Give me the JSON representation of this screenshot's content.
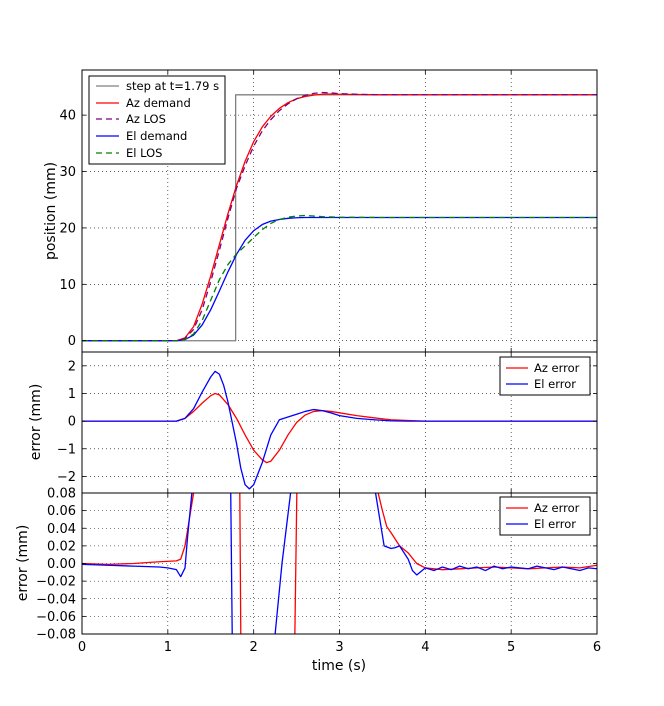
{
  "chart_data": [
    {
      "type": "line",
      "panel": "top",
      "xlim": [
        0,
        6
      ],
      "ylim": [
        -2,
        48
      ],
      "xticks": [
        0,
        1,
        2,
        3,
        4,
        5,
        6
      ],
      "yticks": [
        0,
        10,
        20,
        30,
        40
      ],
      "ytick_labels": [
        "0",
        "10",
        "20",
        "30",
        "40"
      ],
      "ylabel": "position (mm)",
      "grid": true,
      "legend_position": "top-left",
      "series": [
        {
          "name": "step at t=1.79 s",
          "color": "#808080",
          "style": "solid",
          "x": [
            0,
            1.79,
            1.79,
            6
          ],
          "y": [
            0,
            0,
            43.6,
            43.6
          ]
        },
        {
          "name": "Az demand",
          "color": "#ff0000",
          "style": "solid",
          "x": [
            0,
            1.1,
            1.2,
            1.3,
            1.4,
            1.5,
            1.6,
            1.7,
            1.8,
            1.9,
            2.0,
            2.1,
            2.2,
            2.3,
            2.4,
            2.5,
            2.6,
            2.7,
            2.8,
            2.9,
            3.0,
            3.2,
            3.5,
            4.0,
            6.0
          ],
          "y": [
            0,
            0,
            0.5,
            2.5,
            6.5,
            11.5,
            17.0,
            22.5,
            27.5,
            31.8,
            35.3,
            37.9,
            39.8,
            41.2,
            42.2,
            42.9,
            43.3,
            43.55,
            43.7,
            43.75,
            43.7,
            43.65,
            43.6,
            43.6,
            43.6
          ]
        },
        {
          "name": "Az LOS",
          "color": "#800080",
          "style": "dashed",
          "x": [
            0,
            1.1,
            1.2,
            1.3,
            1.4,
            1.5,
            1.6,
            1.7,
            1.8,
            1.9,
            2.0,
            2.1,
            2.2,
            2.3,
            2.4,
            2.5,
            2.6,
            2.7,
            2.8,
            2.9,
            3.0,
            3.2,
            3.5,
            4.0,
            6.0
          ],
          "y": [
            0,
            0,
            0.4,
            2.0,
            5.5,
            10.5,
            16.0,
            21.7,
            27.0,
            31.0,
            34.5,
            37.2,
            39.2,
            40.8,
            42.0,
            42.9,
            43.5,
            43.85,
            44.0,
            43.95,
            43.8,
            43.7,
            43.6,
            43.6,
            43.6
          ]
        },
        {
          "name": "El demand",
          "color": "#0000ff",
          "style": "solid",
          "x": [
            0,
            1.1,
            1.2,
            1.3,
            1.4,
            1.5,
            1.6,
            1.7,
            1.8,
            1.9,
            2.0,
            2.1,
            2.2,
            2.3,
            2.4,
            2.5,
            2.6,
            2.7,
            2.8,
            3.0,
            3.5,
            4.0,
            6.0
          ],
          "y": [
            0,
            0,
            0.2,
            1.0,
            2.8,
            5.5,
            8.8,
            12.2,
            15.3,
            17.8,
            19.5,
            20.6,
            21.2,
            21.5,
            21.7,
            21.8,
            21.85,
            21.85,
            21.85,
            21.85,
            21.85,
            21.85,
            21.85
          ]
        },
        {
          "name": "El LOS",
          "color": "#008000",
          "style": "dashed",
          "x": [
            0,
            1.1,
            1.2,
            1.3,
            1.4,
            1.5,
            1.6,
            1.7,
            1.8,
            1.9,
            2.0,
            2.1,
            2.2,
            2.3,
            2.4,
            2.5,
            2.6,
            2.7,
            2.8,
            3.0,
            3.5,
            4.0,
            6.0
          ],
          "y": [
            0,
            0,
            0.2,
            1.2,
            3.6,
            7.2,
            10.8,
            13.5,
            15.4,
            16.8,
            18.3,
            19.7,
            20.8,
            21.5,
            21.9,
            22.1,
            22.2,
            22.1,
            22.0,
            21.9,
            21.85,
            21.85,
            21.85
          ]
        }
      ]
    },
    {
      "type": "line",
      "panel": "middle",
      "xlim": [
        0,
        6
      ],
      "ylim": [
        -2.6,
        2.5
      ],
      "xticks": [
        0,
        1,
        2,
        3,
        4,
        5,
        6
      ],
      "yticks": [
        2,
        1,
        0,
        -1,
        -2
      ],
      "ytick_labels": [
        "2",
        "1",
        "0",
        "−1",
        "−2"
      ],
      "ylabel": "error (mm)",
      "grid": true,
      "legend_position": "top-right",
      "series": [
        {
          "name": "Az error",
          "color": "#ff0000",
          "x": [
            0,
            1.1,
            1.2,
            1.3,
            1.4,
            1.5,
            1.55,
            1.6,
            1.7,
            1.8,
            1.9,
            2.0,
            2.1,
            2.15,
            2.2,
            2.3,
            2.4,
            2.5,
            2.6,
            2.7,
            2.8,
            2.9,
            3.0,
            3.2,
            3.4,
            3.6,
            3.8,
            4.0,
            4.5,
            6.0
          ],
          "y": [
            0,
            0,
            0.1,
            0.35,
            0.65,
            0.92,
            1.0,
            0.95,
            0.6,
            0.1,
            -0.5,
            -1.05,
            -1.4,
            -1.5,
            -1.45,
            -1.05,
            -0.5,
            -0.05,
            0.22,
            0.35,
            0.38,
            0.35,
            0.3,
            0.2,
            0.12,
            0.05,
            0.02,
            0.0,
            0.0,
            0.0
          ]
        },
        {
          "name": "El error",
          "color": "#0000ff",
          "x": [
            0,
            1.1,
            1.2,
            1.3,
            1.4,
            1.5,
            1.55,
            1.6,
            1.65,
            1.7,
            1.8,
            1.85,
            1.9,
            1.95,
            2.0,
            2.1,
            2.2,
            2.3,
            2.4,
            2.5,
            2.6,
            2.7,
            2.8,
            2.9,
            3.0,
            3.2,
            3.4,
            3.6,
            3.8,
            4.0,
            4.5,
            6.0
          ],
          "y": [
            0,
            0,
            0.1,
            0.45,
            1.05,
            1.6,
            1.8,
            1.7,
            1.3,
            0.7,
            -0.8,
            -1.7,
            -2.3,
            -2.45,
            -2.3,
            -1.5,
            -0.5,
            0.05,
            0.15,
            0.25,
            0.35,
            0.42,
            0.38,
            0.3,
            0.2,
            0.1,
            0.05,
            0.01,
            0.0,
            0.0,
            0.0,
            0.0
          ]
        }
      ]
    },
    {
      "type": "line",
      "panel": "bottom",
      "xlim": [
        0,
        6
      ],
      "ylim": [
        -0.08,
        0.08
      ],
      "xticks": [
        0,
        1,
        2,
        3,
        4,
        5,
        6
      ],
      "xtick_labels": [
        "0",
        "1",
        "2",
        "3",
        "4",
        "5",
        "6"
      ],
      "xlabel": "time (s)",
      "yticks": [
        0.08,
        0.06,
        0.04,
        0.02,
        0.0,
        -0.02,
        -0.04,
        -0.06,
        -0.08
      ],
      "ytick_labels": [
        "0.08",
        "0.06",
        "0.04",
        "0.02",
        "0.00",
        "−0.02",
        "−0.04",
        "−0.06",
        "−0.08"
      ],
      "ylabel": "error (mm)",
      "grid": true,
      "legend_position": "top-right",
      "series": [
        {
          "name": "Az error",
          "color": "#ff0000",
          "x": [
            0,
            0.3,
            0.6,
            0.9,
            1.1,
            1.15,
            1.2,
            1.25,
            1.3,
            1.35,
            1.83,
            1.85,
            1.87,
            2.45,
            2.48,
            2.52,
            3.38,
            3.45,
            3.5,
            3.55,
            3.6,
            3.7,
            3.8,
            3.9,
            4.0,
            4.2,
            4.4,
            4.6,
            4.8,
            5.0,
            5.2,
            5.4,
            5.6,
            5.8,
            6.0
          ],
          "y": [
            0.0,
            -0.001,
            0.0,
            0.002,
            0.003,
            0.005,
            0.02,
            0.05,
            0.08,
            0.2,
            0.2,
            -0.08,
            -0.2,
            -0.2,
            -0.08,
            0.2,
            0.2,
            0.08,
            0.06,
            0.042,
            0.035,
            0.02,
            0.012,
            0.0,
            -0.005,
            -0.007,
            -0.006,
            -0.005,
            -0.004,
            -0.005,
            -0.006,
            -0.005,
            -0.004,
            -0.005,
            -0.002
          ]
        },
        {
          "name": "El error",
          "color": "#0000ff",
          "x": [
            0,
            0.3,
            0.6,
            0.9,
            1.0,
            1.1,
            1.15,
            1.2,
            1.23,
            1.28,
            1.35,
            1.72,
            1.75,
            1.78,
            2.2,
            2.25,
            2.33,
            2.43,
            2.6,
            3.38,
            3.42,
            3.47,
            3.52,
            3.6,
            3.65,
            3.7,
            3.8,
            3.85,
            3.9,
            4.0,
            4.1,
            4.2,
            4.3,
            4.4,
            4.5,
            4.6,
            4.7,
            4.8,
            4.9,
            5.0,
            5.1,
            5.2,
            5.3,
            5.4,
            5.5,
            5.6,
            5.7,
            5.8,
            5.9,
            6.0
          ],
          "y": [
            -0.001,
            -0.002,
            -0.003,
            -0.004,
            -0.005,
            -0.007,
            -0.015,
            -0.005,
            0.03,
            0.08,
            0.2,
            0.2,
            -0.08,
            -0.2,
            -0.2,
            -0.08,
            0.0,
            0.08,
            0.2,
            0.2,
            0.08,
            0.05,
            0.02,
            0.017,
            0.018,
            0.02,
            0.005,
            -0.008,
            -0.013,
            -0.005,
            -0.008,
            -0.004,
            -0.007,
            -0.003,
            -0.006,
            -0.004,
            -0.008,
            -0.003,
            -0.006,
            -0.004,
            -0.005,
            -0.006,
            -0.003,
            -0.005,
            -0.007,
            -0.004,
            -0.006,
            -0.008,
            -0.005,
            -0.006
          ]
        }
      ]
    }
  ],
  "legends": {
    "top": [
      "step at t=1.79 s",
      "Az demand",
      "Az LOS",
      "El demand",
      "El LOS"
    ],
    "middle": [
      "Az error",
      "El error"
    ],
    "bottom": [
      "Az error",
      "El error"
    ]
  }
}
